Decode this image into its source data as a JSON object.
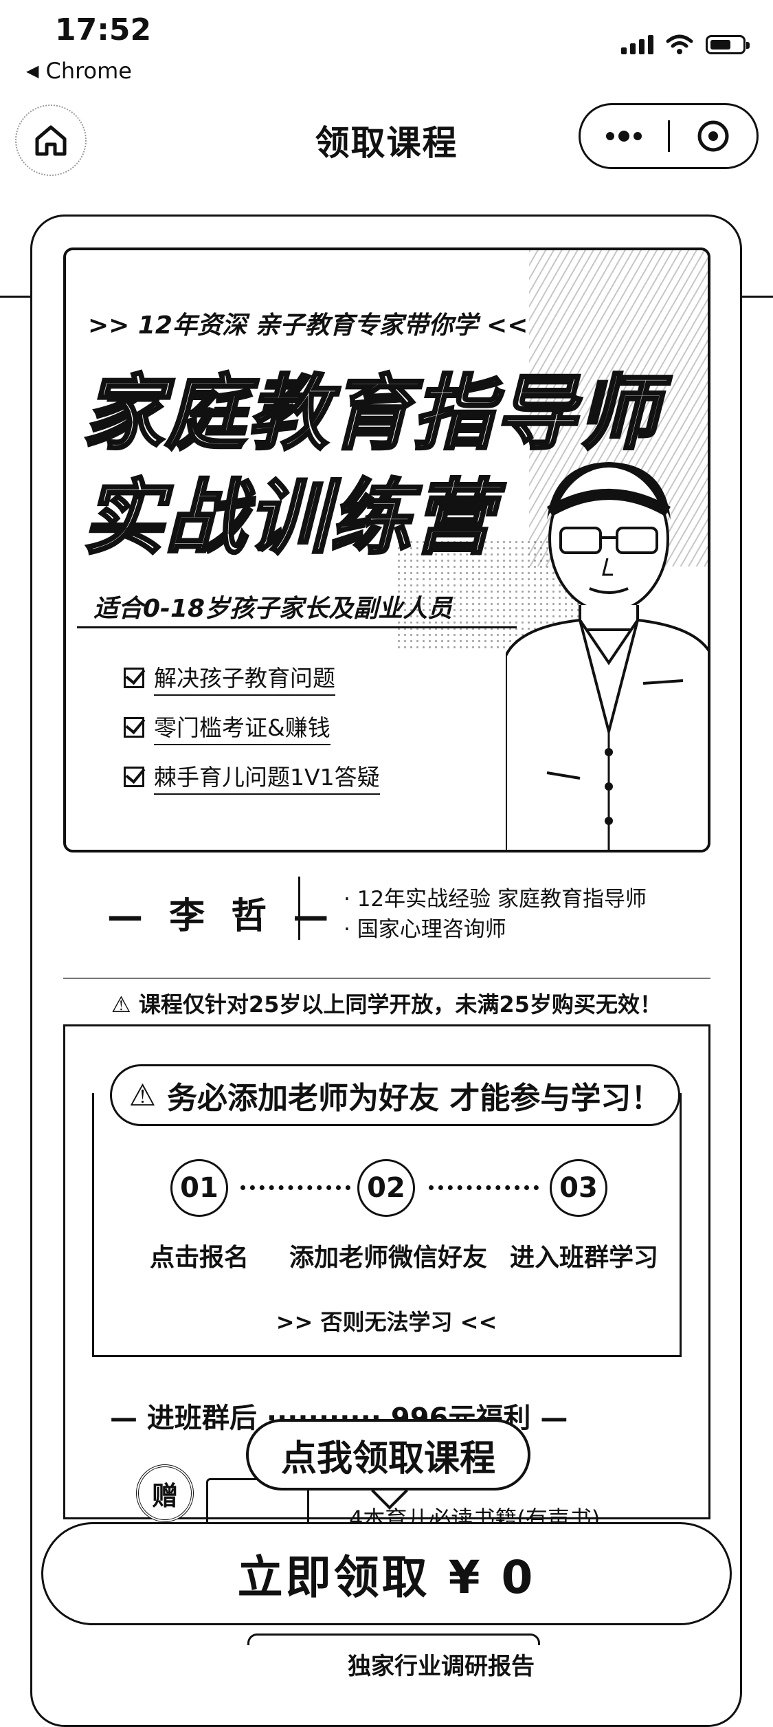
{
  "status_bar": {
    "time": "17:52",
    "back_app": "Chrome"
  },
  "nav": {
    "title": "领取课程"
  },
  "poster": {
    "subtitle": ">>  12年资深 亲子教育专家带你学  <<",
    "title_line1": "家庭教育指导师",
    "title_line2": "实战训练营",
    "tagline": "适合0-18岁孩子家长及副业人员",
    "checks": [
      "解决孩子教育问题",
      "零门槛考证&赚钱",
      "棘手育儿问题1V1答疑"
    ]
  },
  "teacher": {
    "name": "— 李 哲 —",
    "desc": [
      "· 12年实战经验 家庭教育指导师",
      "· 国家心理咨询师"
    ]
  },
  "notice": "课程仅针对25岁以上同学开放，未满25岁购买无效！",
  "steps_section": {
    "heading": "务必添加老师为好友 才能参与学习！",
    "steps": [
      {
        "num": "01",
        "label": "点击报名"
      },
      {
        "num": "02",
        "label": "添加老师微信好友"
      },
      {
        "num": "03",
        "label": "进入班群学习"
      }
    ],
    "note": ">>  否则无法学习  <<"
  },
  "benefits": {
    "heading": "— 进班群后 ··········· 996元福利 —",
    "stamp": "赠",
    "book_line": "4本育儿必读书籍(有声书)",
    "report": "独家行业调研报告"
  },
  "bubble": "点我领取课程",
  "cta": "立即领取 ¥ 0",
  "colors": {
    "ink": "#111111",
    "background": "#ffffff"
  }
}
